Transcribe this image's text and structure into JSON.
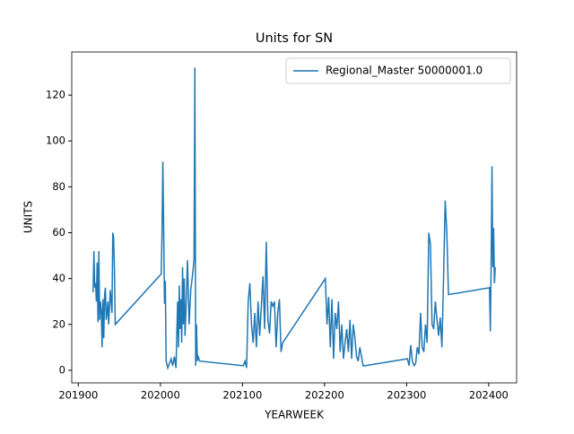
{
  "chart_data": {
    "type": "line",
    "title": "Units for SN",
    "x_label": "YEARWEEK",
    "y_label": "UNITS",
    "x": [
      201918,
      201919,
      201920,
      201921,
      201922,
      201923,
      201924,
      201925,
      201926,
      201927,
      201928,
      201929,
      201930,
      201931,
      201932,
      201933,
      201934,
      201935,
      201936,
      201937,
      201938,
      201939,
      201940,
      201941,
      201942,
      201943,
      201944,
      201945,
      202001,
      202002,
      202003,
      202004,
      202005,
      202006,
      202007,
      202009,
      202011,
      202013,
      202015,
      202017,
      202019,
      202021,
      202022,
      202023,
      202024,
      202025,
      202026,
      202027,
      202028,
      202029,
      202030,
      202031,
      202033,
      202035,
      202037,
      202039,
      202041,
      202042,
      202043,
      202044,
      202045,
      202046,
      202048,
      202101,
      202103,
      202105,
      202107,
      202109,
      202111,
      202113,
      202115,
      202117,
      202119,
      202121,
      202123,
      202125,
      202127,
      202129,
      202131,
      202133,
      202135,
      202137,
      202139,
      202141,
      202143,
      202145,
      202147,
      202149,
      202201,
      202203,
      202205,
      202207,
      202209,
      202211,
      202213,
      202215,
      202217,
      202219,
      202221,
      202223,
      202225,
      202227,
      202229,
      202231,
      202233,
      202235,
      202237,
      202239,
      202241,
      202243,
      202245,
      202247,
      202249,
      202301,
      202303,
      202305,
      202307,
      202309,
      202311,
      202313,
      202315,
      202317,
      202319,
      202321,
      202323,
      202325,
      202327,
      202329,
      202331,
      202333,
      202335,
      202337,
      202339,
      202341,
      202343,
      202345,
      202347,
      202349,
      202351,
      202401,
      202402,
      202403,
      202404,
      202405,
      202406,
      202407,
      202408
    ],
    "series": [
      {
        "name": "Regional_Master 50000001.0",
        "color": "#1f77b4",
        "values": [
          34,
          52,
          36,
          38,
          30,
          47,
          21,
          52,
          22,
          30,
          26,
          10,
          31,
          14,
          33,
          36,
          22,
          25,
          30,
          20,
          28,
          35,
          30,
          25,
          60,
          58,
          44,
          20,
          42,
          60,
          91,
          62,
          29,
          39,
          4,
          1,
          3,
          5,
          2,
          6,
          1,
          30,
          10,
          37,
          18,
          31,
          12,
          45,
          20,
          40,
          15,
          25,
          48,
          20,
          35,
          41,
          48,
          132,
          2,
          20,
          4,
          6,
          4,
          2,
          4,
          1,
          30,
          38,
          20,
          12,
          25,
          10,
          30,
          15,
          28,
          41,
          18,
          56,
          22,
          16,
          30,
          28,
          30,
          10,
          25,
          31,
          8,
          12,
          40,
          20,
          32,
          10,
          31,
          5,
          25,
          18,
          30,
          8,
          20,
          5,
          12,
          18,
          8,
          22,
          5,
          20,
          14,
          6,
          4,
          10,
          6,
          2,
          2,
          5,
          2,
          11,
          4,
          2,
          3,
          10,
          7,
          25,
          10,
          8,
          20,
          12,
          60,
          55,
          20,
          18,
          30,
          22,
          15,
          23,
          10,
          40,
          74,
          60,
          33,
          36,
          17,
          46,
          89,
          45,
          62,
          38,
          45
        ]
      }
    ],
    "xlim": [
      201892,
      202434
    ],
    "ylim": [
      -5.5,
      138.8
    ],
    "xticks": [
      201900,
      202000,
      202100,
      202200,
      202300,
      202400
    ],
    "yticks": [
      0,
      20,
      40,
      60,
      80,
      100,
      120
    ],
    "legend": "upper right"
  }
}
